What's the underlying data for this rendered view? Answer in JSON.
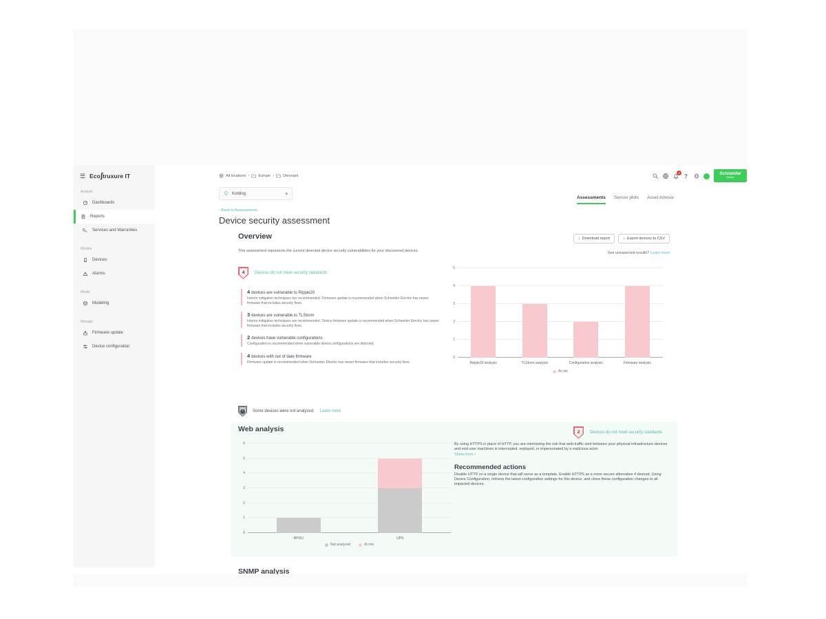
{
  "colors": {
    "brand_green": "#3dcd58",
    "link_teal": "#53b8ba",
    "risk_pink": "#f8c9cf",
    "not_analyzed_gray": "#cbcbcb",
    "badge_red_border": "#df6b78"
  },
  "sidebar": {
    "menu_glyph": "☰",
    "logo": {
      "prefix": "Eco",
      "swirl": "∫",
      "suffix": "truxure IT"
    },
    "sections": [
      {
        "label": "Analyze",
        "items": [
          {
            "label": "Dashboards"
          },
          {
            "label": "Reports"
          },
          {
            "label": "Services and Warranties"
          }
        ]
      },
      {
        "label": "Monitor",
        "items": [
          {
            "label": "Devices"
          },
          {
            "label": "Alarms"
          }
        ]
      },
      {
        "label": "Model",
        "items": [
          {
            "label": "Modeling"
          }
        ]
      },
      {
        "label": "Manage",
        "items": [
          {
            "label": "Firmware update"
          },
          {
            "label": "Device configuration"
          }
        ]
      }
    ]
  },
  "topbar": {
    "breadcrumb": {
      "root": "All locations",
      "separator": "›",
      "crumbs": [
        "Europe",
        "Denmark"
      ]
    },
    "location_selector": {
      "value": "Kolding",
      "chevron": "▾"
    },
    "notification_count": "4",
    "help_glyph": "?",
    "brand_logo": {
      "line1": "Schneider",
      "line2": "Electric"
    }
  },
  "tabs": [
    {
      "label": "Assessments"
    },
    {
      "label": "Sensor plots"
    },
    {
      "label": "Asset Advisor"
    }
  ],
  "page": {
    "back_link": "‹ Back to Assessments",
    "title": "Device security assessment"
  },
  "overview": {
    "heading": "Overview",
    "download_glyph": "↓",
    "download_button": "Download report",
    "export_button": "Export devices to CSV",
    "description": "This assessment represents the current detected device security vulnerabilities for your discovered devices.",
    "unexpected_text": "See unexpected results?",
    "unexpected_link": "Learn more",
    "badge": {
      "count": "4",
      "label": "Devices do not meet security standards"
    },
    "findings": [
      {
        "count": "4",
        "title": "devices are vulnerable to Ripple20",
        "description": "Interim mitigation techniques are recommended. Firmware update is recommended when Schneider Electric has newer firmware that includes security fixes."
      },
      {
        "count": "3",
        "title": "devices are vulnerable to TLStorm",
        "description": "Interim mitigation techniques are recommended. Device firmware update is recommended when Schneider Electric has newer firmware that includes security fixes."
      },
      {
        "count": "2",
        "title": "devices have vulnerable configurations",
        "description": "Configuration is recommended when vulnerable device configurations are detected."
      },
      {
        "count": "4",
        "title": "devices with out of date firmware",
        "description": "Firmware update is recommended when Schneider Electric has newer firmware that includes security fixes."
      }
    ],
    "not_analyzed": {
      "text": "Some devices were not analyzed.",
      "link": "Learn more",
      "glyph": "!"
    }
  },
  "web_analysis": {
    "heading": "Web analysis",
    "badge": {
      "count": "2",
      "label": "Devices do not meet security standards"
    },
    "paragraph": "By using HTTPS in place of HTTP, you are minimizing the risk that web traffic sent between your physical infrastructure devices and end user machines is intercepted, replayed, or impersonated by a malicious actor.",
    "show_more": "Show more ›",
    "recommended_heading": "Recommended actions",
    "recommended_text": "Disable HTTP on a single device that will serve as a template. Enable HTTPS as a more secure alternative if desired. Using Device Configuration, retrieve the latest configuration settings for this device, and clone these configuration changes to all impacted devices."
  },
  "snmp": {
    "heading": "SNMP analysis"
  },
  "chart_data": [
    {
      "type": "bar",
      "categories": [
        "Ripple20 analysis",
        "TLStorm analysis",
        "Configuration analysis",
        "Firmware analysis"
      ],
      "series": [
        {
          "name": "At risk",
          "color": "#f8c9cf",
          "values": [
            4,
            3,
            2,
            4
          ]
        }
      ],
      "ylim": [
        0,
        5
      ],
      "grid": true,
      "legend_position": "bottom",
      "title": "",
      "xlabel": "",
      "ylabel": ""
    },
    {
      "type": "bar",
      "stacked": true,
      "categories": [
        "RPDU",
        "UPS"
      ],
      "series": [
        {
          "name": "Not analyzed",
          "color": "#cbcbcb",
          "values": [
            1,
            3
          ]
        },
        {
          "name": "At risk",
          "color": "#f8c9cf",
          "values": [
            0,
            2
          ]
        }
      ],
      "ylim": [
        0,
        6
      ],
      "grid": true,
      "legend_position": "bottom",
      "title": "",
      "xlabel": "",
      "ylabel": ""
    }
  ]
}
